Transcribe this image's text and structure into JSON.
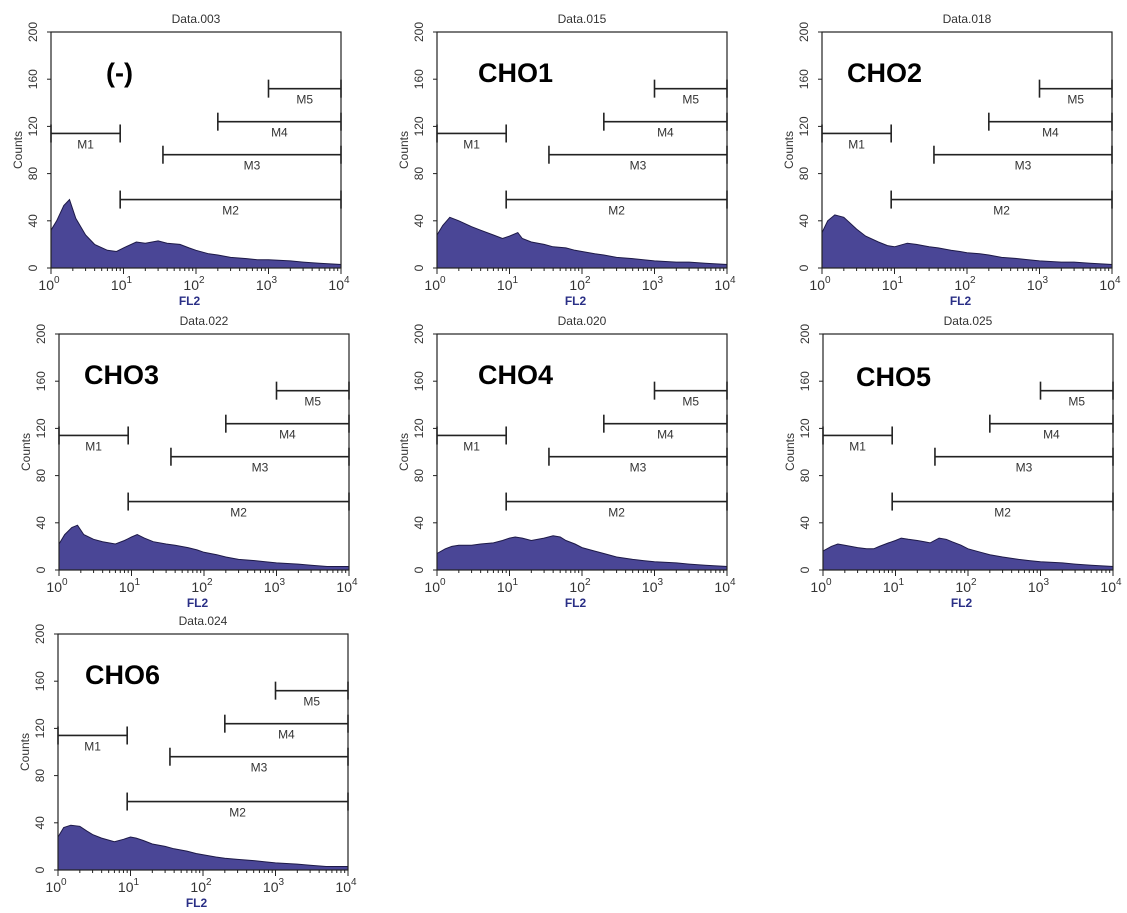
{
  "colors": {
    "fill": "#4a4696",
    "stroke": "#1e1a48",
    "frame": "#222222",
    "xlabel": "#2a2f86",
    "text": "#333333"
  },
  "x_tick_labels": [
    {
      "base": "10",
      "exp": "0"
    },
    {
      "base": "10",
      "exp": "1"
    },
    {
      "base": "10",
      "exp": "2"
    },
    {
      "base": "10",
      "exp": "3"
    },
    {
      "base": "10",
      "exp": "4"
    }
  ],
  "y_tick_labels": [
    "0",
    "40",
    "80",
    "120",
    "160",
    "200"
  ],
  "chart_data": [
    {
      "type": "area",
      "title": "Data.003",
      "label": "(-)",
      "xlabel": "FL2",
      "ylabel": "Counts",
      "xscale": "log",
      "xlim": [
        1,
        10000
      ],
      "ylim": [
        0,
        200
      ],
      "x": [
        1,
        1.2,
        1.5,
        1.8,
        2.2,
        3,
        4,
        6,
        8,
        10,
        15,
        20,
        30,
        40,
        60,
        80,
        100,
        150,
        200,
        300,
        500,
        700,
        1000,
        2000,
        3000,
        5000,
        10000
      ],
      "counts": [
        32,
        40,
        53,
        58,
        42,
        28,
        20,
        15,
        14,
        17,
        22,
        21,
        23,
        21,
        20,
        17,
        15,
        12,
        11,
        9,
        8,
        7,
        7,
        6,
        5,
        4,
        3
      ],
      "markers": [
        {
          "name": "M1",
          "range": [
            1,
            9
          ],
          "y": 114
        },
        {
          "name": "M2",
          "range": [
            9,
            10000
          ],
          "y": 58
        },
        {
          "name": "M3",
          "range": [
            35,
            10000
          ],
          "y": 96
        },
        {
          "name": "M4",
          "range": [
            200,
            10000
          ],
          "y": 124
        },
        {
          "name": "M5",
          "range": [
            1000,
            10000
          ],
          "y": 152
        }
      ]
    },
    {
      "type": "area",
      "title": "Data.015",
      "label": "CHO1",
      "xlabel": "FL2",
      "ylabel": "Counts",
      "xscale": "log",
      "xlim": [
        1,
        10000
      ],
      "ylim": [
        0,
        200
      ],
      "x": [
        1,
        1.2,
        1.5,
        2,
        3,
        4,
        6,
        8,
        10,
        13,
        15,
        20,
        30,
        40,
        60,
        80,
        100,
        150,
        200,
        300,
        500,
        700,
        1000,
        2000,
        3000,
        5000,
        10000
      ],
      "counts": [
        28,
        36,
        43,
        40,
        35,
        32,
        28,
        25,
        27,
        30,
        25,
        22,
        20,
        18,
        17,
        15,
        14,
        12,
        11,
        9,
        8,
        7,
        6,
        5,
        5,
        4,
        3
      ],
      "markers": [
        {
          "name": "M1",
          "range": [
            1,
            9
          ],
          "y": 114
        },
        {
          "name": "M2",
          "range": [
            9,
            10000
          ],
          "y": 58
        },
        {
          "name": "M3",
          "range": [
            35,
            10000
          ],
          "y": 96
        },
        {
          "name": "M4",
          "range": [
            200,
            10000
          ],
          "y": 124
        },
        {
          "name": "M5",
          "range": [
            1000,
            10000
          ],
          "y": 152
        }
      ]
    },
    {
      "type": "area",
      "title": "Data.018",
      "label": "CHO2",
      "xlabel": "FL2",
      "ylabel": "Counts",
      "xscale": "log",
      "xlim": [
        1,
        10000
      ],
      "ylim": [
        0,
        200
      ],
      "x": [
        1,
        1.2,
        1.5,
        2,
        3,
        4,
        6,
        8,
        10,
        15,
        20,
        30,
        40,
        60,
        80,
        100,
        150,
        200,
        300,
        500,
        700,
        1000,
        2000,
        3000,
        5000,
        10000
      ],
      "counts": [
        30,
        40,
        45,
        43,
        33,
        27,
        22,
        19,
        18,
        21,
        20,
        18,
        17,
        15,
        14,
        13,
        12,
        11,
        9,
        8,
        7,
        6,
        5,
        5,
        4,
        3
      ],
      "markers": [
        {
          "name": "M1",
          "range": [
            1,
            9
          ],
          "y": 114
        },
        {
          "name": "M2",
          "range": [
            9,
            10000
          ],
          "y": 58
        },
        {
          "name": "M3",
          "range": [
            35,
            10000
          ],
          "y": 96
        },
        {
          "name": "M4",
          "range": [
            200,
            10000
          ],
          "y": 124
        },
        {
          "name": "M5",
          "range": [
            1000,
            10000
          ],
          "y": 152
        }
      ]
    },
    {
      "type": "area",
      "title": "Data.022",
      "label": "CHO3",
      "xlabel": "FL2",
      "ylabel": "Counts",
      "xscale": "log",
      "xlim": [
        1,
        10000
      ],
      "ylim": [
        0,
        200
      ],
      "x": [
        1,
        1.2,
        1.5,
        1.8,
        2.2,
        3,
        4,
        6,
        8,
        10,
        12,
        15,
        20,
        30,
        40,
        60,
        80,
        100,
        150,
        200,
        300,
        500,
        700,
        1000,
        2000,
        3000,
        5000,
        10000
      ],
      "counts": [
        22,
        30,
        36,
        38,
        30,
        26,
        24,
        22,
        25,
        28,
        30,
        27,
        24,
        22,
        21,
        19,
        17,
        15,
        13,
        11,
        9,
        8,
        7,
        6,
        5,
        4,
        3,
        3
      ],
      "markers": [
        {
          "name": "M1",
          "range": [
            1,
            9
          ],
          "y": 114
        },
        {
          "name": "M2",
          "range": [
            9,
            10000
          ],
          "y": 58
        },
        {
          "name": "M3",
          "range": [
            35,
            10000
          ],
          "y": 96
        },
        {
          "name": "M4",
          "range": [
            200,
            10000
          ],
          "y": 124
        },
        {
          "name": "M5",
          "range": [
            1000,
            10000
          ],
          "y": 152
        }
      ]
    },
    {
      "type": "area",
      "title": "Data.020",
      "label": "CHO4",
      "xlabel": "FL2",
      "ylabel": "Counts",
      "xscale": "log",
      "xlim": [
        1,
        10000
      ],
      "ylim": [
        0,
        200
      ],
      "x": [
        1,
        1.3,
        1.6,
        2,
        3,
        4,
        6,
        8,
        10,
        12,
        15,
        20,
        30,
        40,
        50,
        60,
        80,
        100,
        150,
        200,
        300,
        500,
        700,
        1000,
        2000,
        3000,
        5000,
        10000
      ],
      "counts": [
        14,
        18,
        20,
        21,
        21,
        22,
        23,
        25,
        27,
        28,
        27,
        25,
        27,
        29,
        28,
        25,
        22,
        19,
        16,
        14,
        11,
        9,
        8,
        7,
        6,
        5,
        4,
        3
      ],
      "markers": [
        {
          "name": "M1",
          "range": [
            1,
            9
          ],
          "y": 114
        },
        {
          "name": "M2",
          "range": [
            9,
            10000
          ],
          "y": 58
        },
        {
          "name": "M3",
          "range": [
            35,
            10000
          ],
          "y": 96
        },
        {
          "name": "M4",
          "range": [
            200,
            10000
          ],
          "y": 124
        },
        {
          "name": "M5",
          "range": [
            1000,
            10000
          ],
          "y": 152
        }
      ]
    },
    {
      "type": "area",
      "title": "Data.025",
      "label": "CHO5",
      "xlabel": "FL2",
      "ylabel": "Counts",
      "xscale": "log",
      "xlim": [
        1,
        10000
      ],
      "ylim": [
        0,
        200
      ],
      "x": [
        1,
        1.3,
        1.6,
        2,
        3,
        4,
        5,
        6,
        8,
        10,
        12,
        15,
        20,
        25,
        30,
        40,
        50,
        60,
        80,
        100,
        150,
        200,
        300,
        500,
        700,
        1000,
        2000,
        3000,
        5000,
        10000
      ],
      "counts": [
        16,
        20,
        22,
        21,
        19,
        18,
        18,
        20,
        23,
        25,
        27,
        26,
        25,
        24,
        23,
        27,
        26,
        24,
        21,
        18,
        15,
        13,
        11,
        9,
        8,
        7,
        6,
        5,
        4,
        3
      ],
      "markers": [
        {
          "name": "M1",
          "range": [
            1,
            9
          ],
          "y": 114
        },
        {
          "name": "M2",
          "range": [
            9,
            10000
          ],
          "y": 58
        },
        {
          "name": "M3",
          "range": [
            35,
            10000
          ],
          "y": 96
        },
        {
          "name": "M4",
          "range": [
            200,
            10000
          ],
          "y": 124
        },
        {
          "name": "M5",
          "range": [
            1000,
            10000
          ],
          "y": 152
        }
      ]
    },
    {
      "type": "area",
      "title": "Data.024",
      "label": "CHO6",
      "xlabel": "FL2",
      "ylabel": "Counts",
      "xscale": "log",
      "xlim": [
        1,
        10000
      ],
      "ylim": [
        0,
        200
      ],
      "x": [
        1,
        1.2,
        1.5,
        2,
        2.5,
        3,
        4,
        6,
        8,
        10,
        12,
        15,
        20,
        30,
        40,
        60,
        80,
        100,
        150,
        200,
        300,
        500,
        700,
        1000,
        2000,
        3000,
        5000,
        10000
      ],
      "counts": [
        28,
        36,
        38,
        37,
        33,
        30,
        27,
        24,
        26,
        28,
        27,
        25,
        22,
        20,
        18,
        16,
        14,
        13,
        11,
        10,
        9,
        8,
        7,
        6,
        5,
        4,
        3,
        3
      ],
      "markers": [
        {
          "name": "M1",
          "range": [
            1,
            9
          ],
          "y": 114
        },
        {
          "name": "M2",
          "range": [
            9,
            10000
          ],
          "y": 58
        },
        {
          "name": "M3",
          "range": [
            35,
            10000
          ],
          "y": 96
        },
        {
          "name": "M4",
          "range": [
            200,
            10000
          ],
          "y": 124
        },
        {
          "name": "M5",
          "range": [
            1000,
            10000
          ],
          "y": 152
        }
      ]
    }
  ]
}
